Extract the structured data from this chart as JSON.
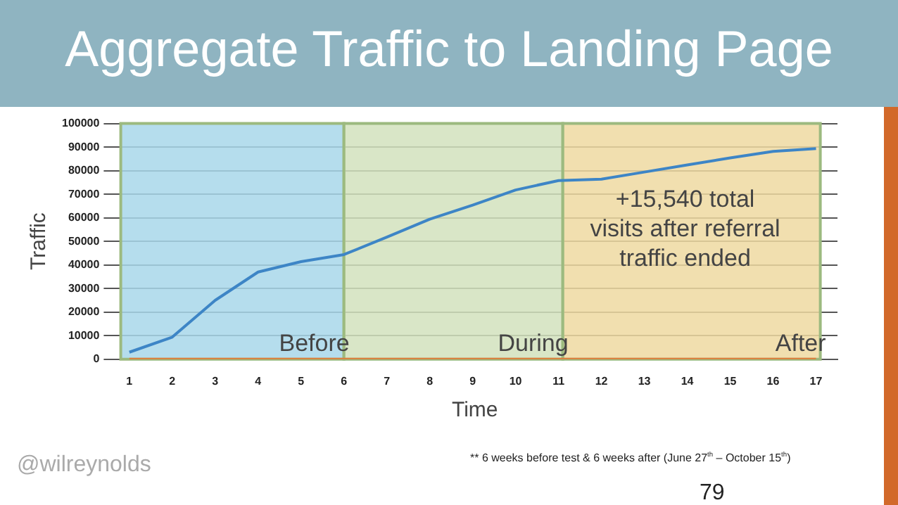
{
  "chart_data": {
    "type": "line",
    "title": "Aggregate Traffic to Landing Page",
    "xlabel": "Time",
    "ylabel": "Traffic",
    "x": [
      1,
      2,
      3,
      4,
      5,
      6,
      7,
      8,
      9,
      10,
      11,
      12,
      13,
      14,
      15,
      16,
      17
    ],
    "series": [
      {
        "color": "#3d85c6",
        "values": [
          3000,
          9400,
          25000,
          37000,
          41400,
          44400,
          51800,
          59400,
          65400,
          71800,
          75800,
          76400,
          79400,
          82400,
          85400,
          88200,
          89400
        ]
      },
      {
        "color": "#e07b39",
        "values": [
          0,
          0,
          0,
          0,
          0,
          0,
          0,
          0,
          0,
          0,
          0,
          0,
          0,
          0,
          0,
          0,
          0
        ]
      }
    ],
    "xlim": [
      0.6,
      17.5
    ],
    "xticks": [
      1,
      2,
      3,
      4,
      5,
      6,
      7,
      8,
      9,
      10,
      11,
      12,
      13,
      14,
      15,
      16,
      17
    ],
    "ylim": [
      0,
      100000
    ],
    "yticks": [
      0,
      10000,
      20000,
      30000,
      40000,
      50000,
      60000,
      70000,
      80000,
      90000,
      100000
    ],
    "grid": "y",
    "legend": false,
    "marker": "none",
    "line_style": "solid",
    "bands": [
      {
        "axis": "x",
        "from": 0.8,
        "to": 6,
        "label": "Before",
        "color": "#a8d7ea"
      },
      {
        "axis": "x",
        "from": 6,
        "to": 11.1,
        "label": "During",
        "color": "#d2e2bd"
      },
      {
        "axis": "x",
        "from": 11.1,
        "to": 17.1,
        "label": "After",
        "color": "#efd9a1"
      }
    ],
    "annotations": [
      "+15,540 total visits after referral traffic ended",
      "@wilreynolds",
      "** 6 weeks before test & 6 weeks after (June 27$^{th}$ – October 15$^{th}$)",
      "79"
    ]
  }
}
